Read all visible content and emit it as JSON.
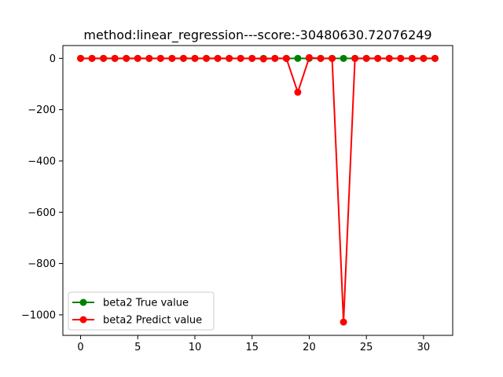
{
  "chart_data": {
    "type": "line",
    "title": "method:linear_regression---score:-30480630.72076249",
    "xlabel": "",
    "ylabel": "",
    "x": [
      0,
      1,
      2,
      3,
      4,
      5,
      6,
      7,
      8,
      9,
      10,
      11,
      12,
      13,
      14,
      15,
      16,
      17,
      18,
      19,
      20,
      21,
      22,
      23,
      24,
      25,
      26,
      27,
      28,
      29,
      30,
      31
    ],
    "xlim": [
      -1.55,
      32.55
    ],
    "ylim": [
      -1080,
      50
    ],
    "xticks": [
      0,
      5,
      10,
      15,
      20,
      25,
      30
    ],
    "xtick_labels": [
      "0",
      "5",
      "10",
      "15",
      "20",
      "25",
      "30"
    ],
    "yticks": [
      0,
      -200,
      -400,
      -600,
      -800,
      -1000
    ],
    "ytick_labels": [
      "0",
      "−200",
      "−400",
      "−600",
      "−800",
      "−1000"
    ],
    "grid": false,
    "legend_position": "lower-left",
    "series": [
      {
        "name": "beta2 True value",
        "color": "#008000",
        "marker": "circle",
        "values": [
          0,
          0,
          0,
          0,
          0,
          0,
          0,
          0,
          0,
          0,
          0,
          0,
          0,
          0,
          0,
          0,
          0,
          0,
          0,
          0,
          0,
          0,
          0,
          0,
          0,
          0,
          0,
          0,
          0,
          0,
          0,
          0
        ]
      },
      {
        "name": "beta2 Predict value",
        "color": "#ff0000",
        "marker": "circle",
        "values": [
          0,
          0,
          0,
          0,
          0,
          0,
          0,
          0,
          0,
          0,
          0,
          0,
          0,
          0,
          0,
          0,
          -2,
          0,
          0,
          -132,
          3,
          0,
          0,
          -1028,
          0,
          0,
          0,
          0,
          0,
          0,
          0,
          0
        ]
      }
    ]
  }
}
